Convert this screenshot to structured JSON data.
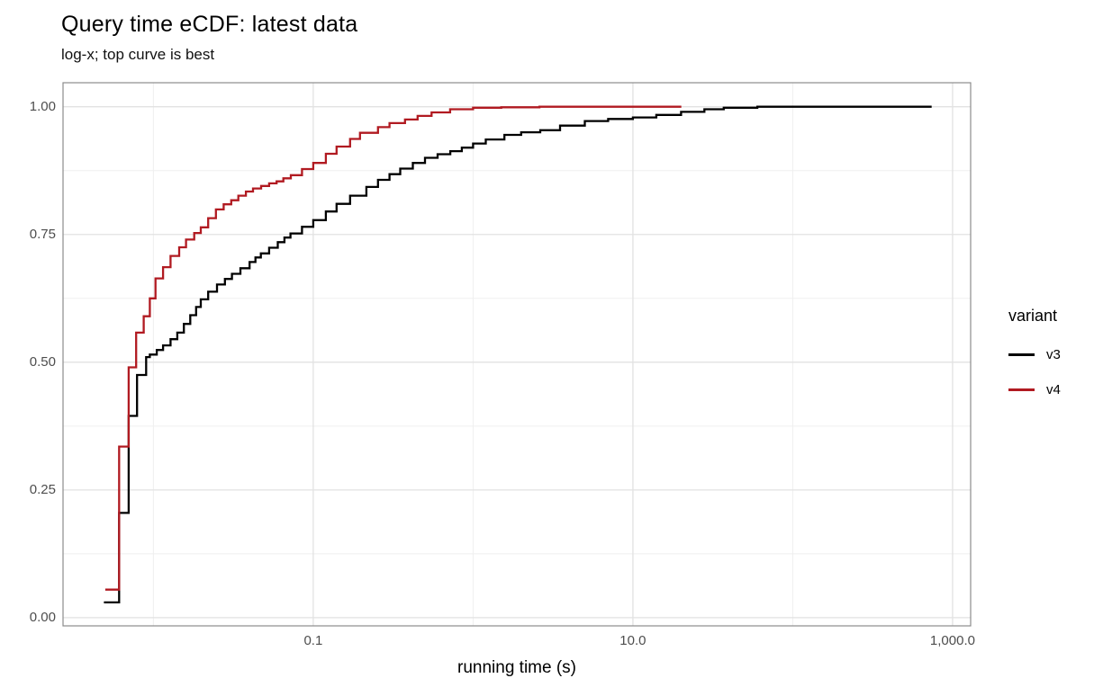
{
  "chart_data": {
    "type": "line",
    "step": "hv",
    "log_x": true,
    "title": "Query time eCDF: latest data",
    "subtitle": "log-x; top curve is best",
    "xlabel": "running time (s)",
    "ylabel": "",
    "xlim": [
      0.00272,
      1297
    ],
    "ylim": [
      -0.016,
      1.047
    ],
    "grid": "on",
    "x_ticks": [
      {
        "value": 0.1,
        "label": "0.1"
      },
      {
        "value": 10,
        "label": "10.0"
      },
      {
        "value": 1000,
        "label": "1,000.0"
      }
    ],
    "x_minor": [
      0.01,
      1,
      100
    ],
    "y_ticks": [
      {
        "value": 0.0,
        "label": "0.00"
      },
      {
        "value": 0.25,
        "label": "0.25"
      },
      {
        "value": 0.5,
        "label": "0.50"
      },
      {
        "value": 0.75,
        "label": "0.75"
      },
      {
        "value": 1.0,
        "label": "1.00"
      }
    ],
    "y_minor": [
      0.125,
      0.375,
      0.625,
      0.875
    ],
    "colors": {
      "v3": "#000000",
      "v4": "#b11a21",
      "grid_major": "#e2e2e2",
      "grid_minor": "#efefef",
      "panel_border": "#8c8c8c",
      "tick_text": "#4d4d4d"
    },
    "legend": {
      "title": "variant",
      "position": "right",
      "entries": [
        {
          "label": "v3",
          "color": "#000000"
        },
        {
          "label": "v4",
          "color": "#b11a21"
        }
      ]
    },
    "series": [
      {
        "name": "v3",
        "color": "#000000",
        "points": [
          [
            0.0049,
            0.03
          ],
          [
            0.0061,
            0.03
          ],
          [
            0.0061,
            0.205
          ],
          [
            0.007,
            0.205
          ],
          [
            0.007,
            0.395
          ],
          [
            0.0079,
            0.395
          ],
          [
            0.0079,
            0.475
          ],
          [
            0.009,
            0.475
          ],
          [
            0.009,
            0.51
          ],
          [
            0.0095,
            0.515
          ],
          [
            0.0105,
            0.524
          ],
          [
            0.0115,
            0.533
          ],
          [
            0.0128,
            0.545
          ],
          [
            0.0141,
            0.558
          ],
          [
            0.0155,
            0.575
          ],
          [
            0.017,
            0.592
          ],
          [
            0.0185,
            0.608
          ],
          [
            0.0198,
            0.623
          ],
          [
            0.022,
            0.638
          ],
          [
            0.025,
            0.652
          ],
          [
            0.028,
            0.663
          ],
          [
            0.031,
            0.673
          ],
          [
            0.035,
            0.684
          ],
          [
            0.04,
            0.696
          ],
          [
            0.0435,
            0.705
          ],
          [
            0.047,
            0.713
          ],
          [
            0.053,
            0.724
          ],
          [
            0.06,
            0.735
          ],
          [
            0.066,
            0.744
          ],
          [
            0.072,
            0.752
          ],
          [
            0.085,
            0.765
          ],
          [
            0.1,
            0.778
          ],
          [
            0.12,
            0.795
          ],
          [
            0.14,
            0.81
          ],
          [
            0.17,
            0.826
          ],
          [
            0.215,
            0.843
          ],
          [
            0.254,
            0.857
          ],
          [
            0.3,
            0.868
          ],
          [
            0.35,
            0.879
          ],
          [
            0.42,
            0.89
          ],
          [
            0.5,
            0.9
          ],
          [
            0.6,
            0.907
          ],
          [
            0.72,
            0.913
          ],
          [
            0.85,
            0.92
          ],
          [
            1.0,
            0.928
          ],
          [
            1.2,
            0.936
          ],
          [
            1.57,
            0.945
          ],
          [
            2.0,
            0.95
          ],
          [
            2.63,
            0.954
          ],
          [
            3.5,
            0.963
          ],
          [
            5.0,
            0.972
          ],
          [
            7.0,
            0.976
          ],
          [
            10.0,
            0.979
          ],
          [
            14.0,
            0.984
          ],
          [
            20.0,
            0.99
          ],
          [
            28.0,
            0.995
          ],
          [
            37.0,
            0.998
          ],
          [
            60.0,
            1.0
          ],
          [
            740.0,
            1.0
          ]
        ]
      },
      {
        "name": "v4",
        "color": "#b11a21",
        "points": [
          [
            0.005,
            0.055
          ],
          [
            0.0061,
            0.055
          ],
          [
            0.0061,
            0.335
          ],
          [
            0.007,
            0.335
          ],
          [
            0.007,
            0.49
          ],
          [
            0.0078,
            0.49
          ],
          [
            0.0078,
            0.558
          ],
          [
            0.0087,
            0.59
          ],
          [
            0.0095,
            0.625
          ],
          [
            0.0103,
            0.664
          ],
          [
            0.0115,
            0.686
          ],
          [
            0.0128,
            0.708
          ],
          [
            0.0145,
            0.725
          ],
          [
            0.016,
            0.74
          ],
          [
            0.018,
            0.753
          ],
          [
            0.0198,
            0.764
          ],
          [
            0.022,
            0.782
          ],
          [
            0.0246,
            0.799
          ],
          [
            0.0275,
            0.809
          ],
          [
            0.0307,
            0.817
          ],
          [
            0.034,
            0.826
          ],
          [
            0.0379,
            0.834
          ],
          [
            0.042,
            0.84
          ],
          [
            0.0472,
            0.845
          ],
          [
            0.053,
            0.85
          ],
          [
            0.059,
            0.854
          ],
          [
            0.065,
            0.86
          ],
          [
            0.0724,
            0.866
          ],
          [
            0.085,
            0.878
          ],
          [
            0.1,
            0.89
          ],
          [
            0.12,
            0.908
          ],
          [
            0.14,
            0.922
          ],
          [
            0.17,
            0.937
          ],
          [
            0.196,
            0.949
          ],
          [
            0.254,
            0.96
          ],
          [
            0.3,
            0.968
          ],
          [
            0.375,
            0.975
          ],
          [
            0.45,
            0.982
          ],
          [
            0.55,
            0.989
          ],
          [
            0.718,
            0.995
          ],
          [
            1.0,
            0.998
          ],
          [
            1.5,
            0.999
          ],
          [
            2.6,
            1.0
          ],
          [
            20.1,
            1.0
          ]
        ]
      }
    ]
  }
}
